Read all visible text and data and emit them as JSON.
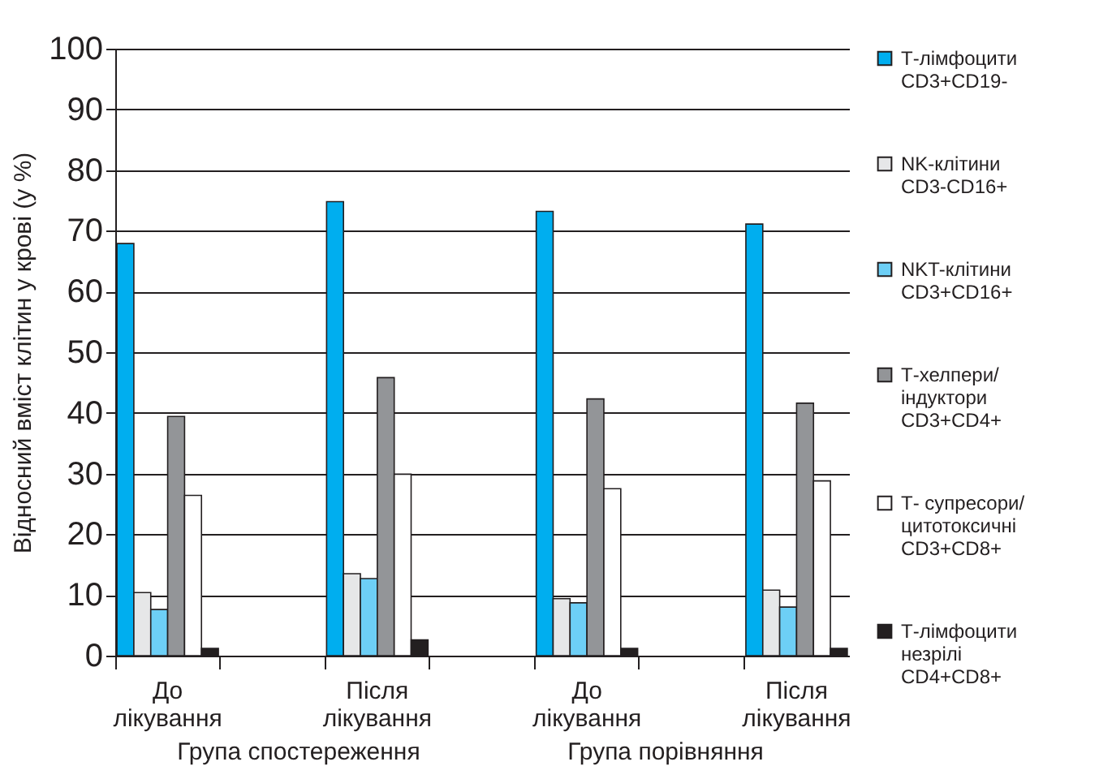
{
  "chart_data": {
    "type": "bar",
    "ylabel": "Відносний вміст клітин у крові (у %)",
    "categories": [
      "До\nлікування",
      null,
      "Після\nлікування",
      null,
      "До\nлікування",
      null,
      "Після\nлікування"
    ],
    "series": [
      {
        "name": "Т-лімфоцити\nCD3+CD19-",
        "color": "#00aeef",
        "values": [
          67.9,
          null,
          74.8,
          null,
          73.2,
          null,
          71.1
        ]
      },
      {
        "name": "NK-клітини\nCD3-CD16+",
        "color": "#e6e7e8",
        "values": [
          10.4,
          null,
          13.5,
          null,
          9.4,
          null,
          10.8
        ]
      },
      {
        "name": "NKT-клітини\nCD3+CD16+",
        "color": "#6dcff6",
        "values": [
          7.6,
          null,
          12.7,
          null,
          8.7,
          null,
          8.0
        ]
      },
      {
        "name": "Т-хелпери/\nіндуктори\nCD3+CD4+",
        "color": "#939598",
        "values": [
          39.4,
          null,
          45.8,
          null,
          42.3,
          null,
          41.6
        ]
      },
      {
        "name": "Т- супресори/\nцитотоксичні\nCD3+CD8+",
        "color": "#ffffff",
        "values": [
          26.4,
          null,
          29.9,
          null,
          27.5,
          null,
          28.8
        ]
      },
      {
        "name": "Т-лімфоцити\nнезрілі\nCD4+CD8+",
        "color": "#231f20",
        "values": [
          1.2,
          null,
          2.6,
          null,
          1.2,
          null,
          1.2
        ]
      }
    ],
    "annotations": [
      "Група спостереження",
      "Група порівняння"
    ],
    "ylim": [
      0,
      100
    ],
    "yticks": [
      0,
      10,
      20,
      30,
      40,
      50,
      60,
      70,
      80,
      90,
      100
    ],
    "grid": "y",
    "legend": "right"
  }
}
